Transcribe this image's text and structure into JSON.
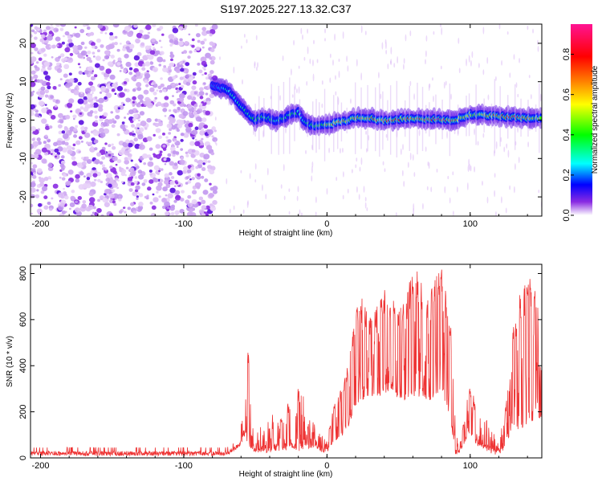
{
  "title": "S197.2025.227.13.32.C37",
  "chart_data": [
    {
      "type": "heatmap",
      "name": "spectrogram",
      "title": "S197.2025.227.13.32.C37",
      "xlabel": "Height of straight line (km)",
      "ylabel": "Frequency (Hz)",
      "xlim": [
        -207,
        150
      ],
      "ylim": [
        -25,
        25
      ],
      "xticks": [
        -200,
        -100,
        0,
        100
      ],
      "yticks": [
        -20,
        -10,
        0,
        10,
        20
      ],
      "xtick_labels": [
        "-200",
        "-100",
        "0",
        "100"
      ],
      "ytick_labels": [
        "-20",
        "-10",
        "0",
        "10",
        "20"
      ],
      "colorbar": {
        "label": "Normalized spectral amplitude",
        "range": [
          0,
          0.95
        ],
        "ticks": [
          0.0,
          0.2,
          0.4,
          0.6,
          0.8
        ],
        "tick_labels": [
          "0.0",
          "0.2",
          "0.4",
          "0.6",
          "0.8"
        ],
        "colors": [
          "#ffffff",
          "#8a2be2",
          "#0000ff",
          "#00ffff",
          "#00ff00",
          "#ffff00",
          "#ff8000",
          "#ff0000",
          "#ff1493"
        ]
      },
      "noise_region_x": [
        -207,
        -78
      ],
      "ridge": {
        "x": [
          -80,
          -75,
          -70,
          -66,
          -62,
          -58,
          -55,
          -50,
          -45,
          -40,
          -35,
          -30,
          -25,
          -20,
          -15,
          -10,
          -5,
          0,
          10,
          20,
          30,
          40,
          50,
          60,
          70,
          80,
          90,
          100,
          110,
          120,
          130,
          140,
          150
        ],
        "freq": [
          9,
          8.5,
          8,
          6.5,
          4.5,
          3,
          1.5,
          0,
          0.8,
          0.5,
          -0.3,
          0.6,
          1.3,
          2,
          -0.8,
          -1.5,
          -1.5,
          -1.2,
          -0.5,
          0.5,
          0.5,
          -0.2,
          0.3,
          0.5,
          0.2,
          0.2,
          0,
          1.5,
          1.2,
          1.0,
          0.8,
          0.5,
          0.5
        ],
        "amplitude": [
          0.2,
          0.25,
          0.3,
          0.3,
          0.3,
          0.35,
          0.3,
          0.4,
          0.4,
          0.4,
          0.35,
          0.4,
          0.4,
          0.35,
          0.35,
          0.4,
          0.5,
          0.6,
          0.7,
          0.65,
          0.65,
          0.75,
          0.75,
          0.7,
          0.85,
          0.9,
          0.7,
          0.55,
          0.6,
          0.7,
          0.9,
          0.7,
          0.5
        ]
      }
    },
    {
      "type": "line",
      "name": "snr",
      "xlabel": "Height of straight line (km)",
      "ylabel": "SNR (10 * v/v)",
      "xlim": [
        -207,
        150
      ],
      "ylim": [
        0,
        840
      ],
      "xticks": [
        -200,
        -100,
        0,
        100
      ],
      "yticks": [
        0,
        200,
        400,
        600,
        800
      ],
      "xtick_labels": [
        "-200",
        "-100",
        "0",
        "100"
      ],
      "ytick_labels": [
        "0",
        "200",
        "400",
        "600",
        "800"
      ],
      "color": "#ee3333",
      "series_envelope": {
        "x": [
          -207,
          -100,
          -70,
          -62,
          -60,
          -57,
          -55,
          -52,
          -50,
          -46,
          -42,
          -38,
          -30,
          -25,
          -20,
          -15,
          -10,
          -5,
          0,
          5,
          10,
          15,
          20,
          25,
          30,
          35,
          40,
          45,
          50,
          55,
          60,
          65,
          70,
          75,
          80,
          85,
          88,
          90,
          92,
          95,
          100,
          105,
          110,
          115,
          120,
          125,
          130,
          135,
          140,
          145,
          150
        ],
        "baseline": [
          20,
          20,
          20,
          50,
          70,
          110,
          60,
          40,
          30,
          30,
          30,
          40,
          40,
          50,
          40,
          45,
          50,
          40,
          30,
          80,
          100,
          150,
          230,
          260,
          280,
          270,
          280,
          290,
          270,
          250,
          280,
          270,
          250,
          270,
          300,
          200,
          100,
          20,
          20,
          60,
          120,
          60,
          50,
          30,
          20,
          60,
          150,
          120,
          150,
          170,
          180
        ],
        "peak": [
          35,
          35,
          45,
          120,
          150,
          260,
          480,
          140,
          90,
          150,
          190,
          200,
          170,
          290,
          300,
          250,
          200,
          110,
          100,
          230,
          300,
          420,
          640,
          700,
          610,
          670,
          740,
          700,
          650,
          680,
          840,
          790,
          700,
          770,
          840,
          650,
          500,
          160,
          60,
          150,
          320,
          200,
          200,
          120,
          50,
          230,
          560,
          720,
          800,
          750,
          600
        ]
      },
      "spike_x": [
        -55,
        -32,
        -27,
        -20,
        2,
        5,
        9,
        12,
        14,
        18,
        21,
        24,
        27,
        30,
        34,
        38,
        40,
        44,
        47,
        50,
        53,
        56,
        58,
        60,
        63,
        66,
        70,
        73,
        75,
        78,
        80,
        83,
        86,
        95,
        100,
        103,
        125,
        130,
        132,
        135,
        138,
        140,
        142,
        145
      ]
    }
  ]
}
